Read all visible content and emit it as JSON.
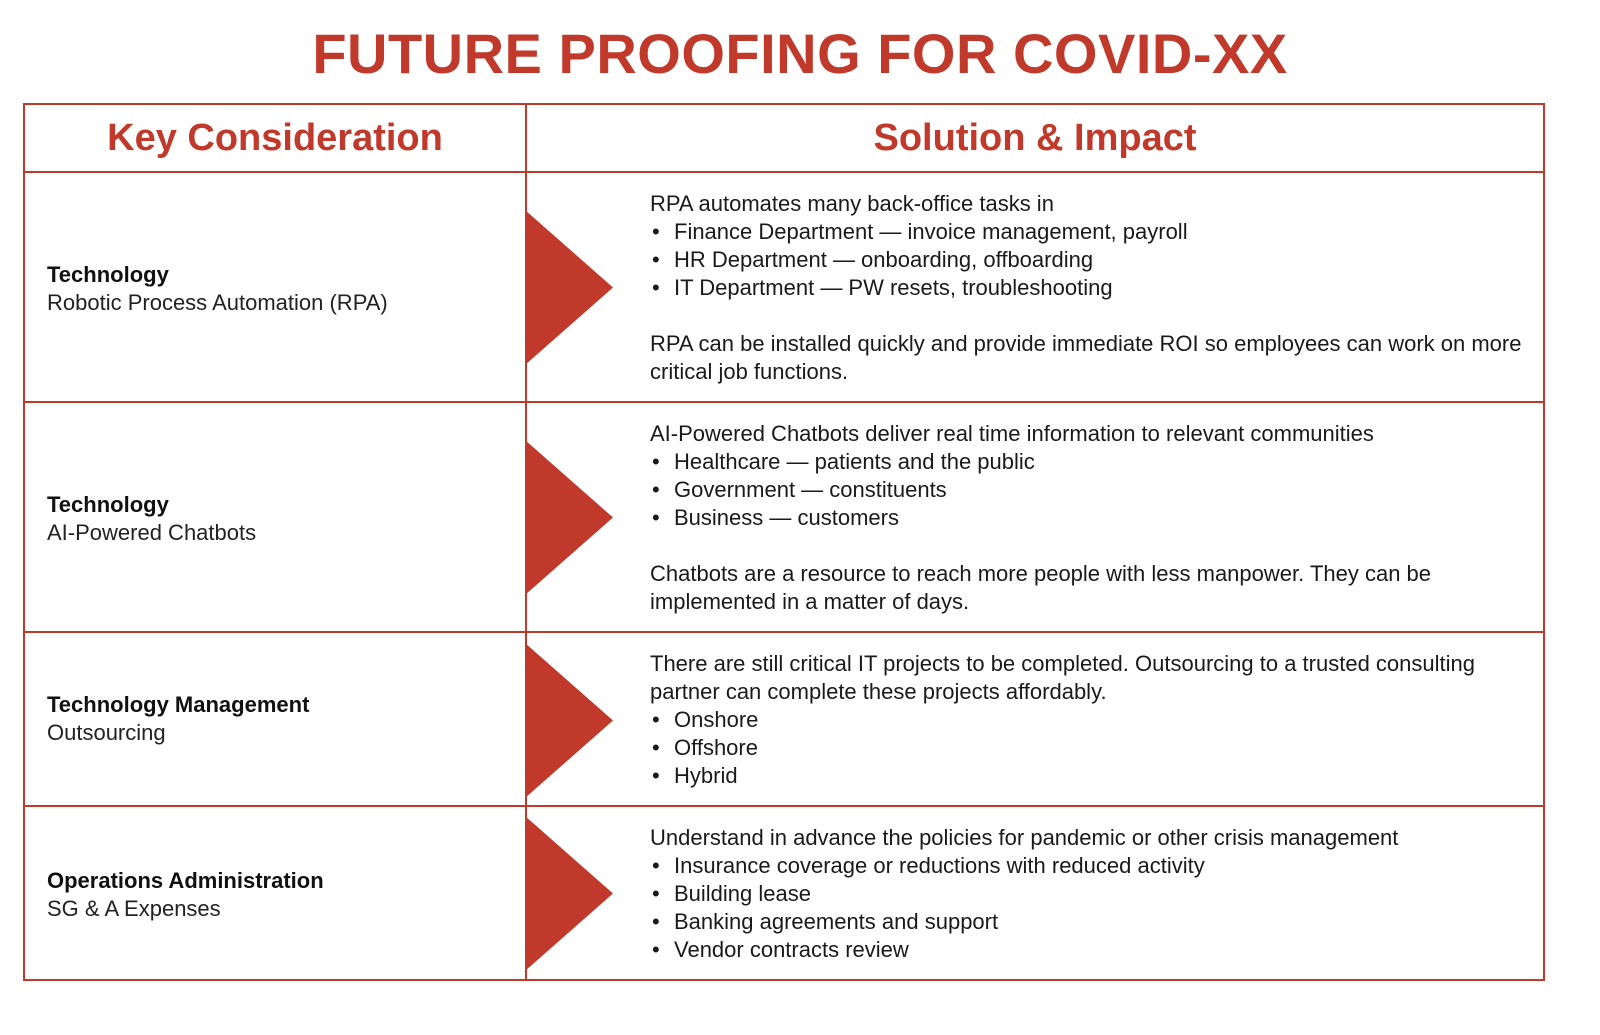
{
  "title": "FUTURE PROOFING FOR COVID-XX",
  "headers": {
    "left": "Key Consideration",
    "right": "Solution & Impact"
  },
  "colors": {
    "accent": "#c0392b"
  },
  "rows": [
    {
      "key_title": "Technology",
      "key_sub": "Robotic Process Automation (RPA)",
      "intro": "RPA automates many back-office tasks in",
      "bullets": [
        "Finance Department — invoice management, payroll",
        "HR Department — onboarding, offboarding",
        "IT Department — PW resets, troubleshooting"
      ],
      "outro": "RPA can be installed quickly and provide immediate ROI so employees can work on more critical job functions."
    },
    {
      "key_title": "Technology",
      "key_sub": "AI-Powered Chatbots",
      "intro": "AI-Powered Chatbots deliver real time information to relevant communities",
      "bullets": [
        "Healthcare — patients and the public",
        "Government — constituents",
        "Business — customers"
      ],
      "outro": "Chatbots are a resource to reach more people with less manpower. They can be implemented in a matter of days."
    },
    {
      "key_title": "Technology Management",
      "key_sub": "Outsourcing",
      "intro": "There are still critical IT projects to be completed. Outsourcing to a trusted consulting partner can complete these projects affordably.",
      "bullets": [
        "Onshore",
        "Offshore",
        "Hybrid"
      ],
      "outro": ""
    },
    {
      "key_title": "Operations Administration",
      "key_sub": "SG & A Expenses",
      "intro": "Understand in advance the policies for pandemic or other crisis management",
      "bullets": [
        "Insurance coverage or reductions with reduced activity",
        "Building lease",
        "Banking agreements and support",
        "Vendor contracts review"
      ],
      "outro": ""
    }
  ],
  "bullet_char": "•"
}
